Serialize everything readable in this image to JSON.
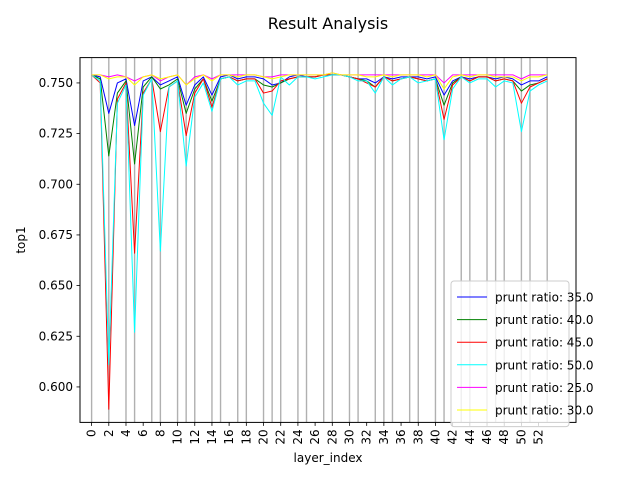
{
  "chart_data": {
    "type": "line",
    "title": "Result Analysis",
    "xlabel": "layer_index",
    "ylabel": "top1",
    "xlim": [
      -1.35,
      56.35
    ],
    "ylim": [
      0.5825,
      0.7625
    ],
    "x_ticks": [
      0,
      2,
      4,
      6,
      8,
      10,
      12,
      14,
      16,
      18,
      20,
      22,
      24,
      26,
      28,
      30,
      32,
      34,
      36,
      38,
      40,
      42,
      44,
      46,
      48,
      50,
      52
    ],
    "y_ticks": [
      0.6,
      0.625,
      0.65,
      0.675,
      0.7,
      0.725,
      0.75
    ],
    "y_tick_labels": [
      "0.600",
      "0.625",
      "0.650",
      "0.675",
      "0.700",
      "0.725",
      "0.750"
    ],
    "vertical_grid_x": [
      0,
      2,
      4,
      5,
      7,
      8,
      10,
      11,
      12,
      14,
      15,
      17,
      18,
      20,
      21,
      22,
      24,
      25,
      27,
      28,
      30,
      31,
      33,
      34,
      35,
      37,
      38,
      40,
      41,
      43,
      44,
      46,
      47,
      48,
      50,
      51,
      53
    ],
    "legend_position": "lower right",
    "series": [
      {
        "name": "prunt ratio: 35.0",
        "color": "#0000ff",
        "values": [
          0.754,
          0.753,
          0.735,
          0.75,
          0.752,
          0.729,
          0.751,
          0.753,
          0.749,
          0.751,
          0.753,
          0.739,
          0.749,
          0.753,
          0.744,
          0.753,
          0.754,
          0.752,
          0.753,
          0.753,
          0.752,
          0.749,
          0.75,
          0.753,
          0.754,
          0.753,
          0.753,
          0.754,
          0.754,
          0.754,
          0.753,
          0.752,
          0.752,
          0.75,
          0.753,
          0.752,
          0.753,
          0.753,
          0.753,
          0.752,
          0.753,
          0.744,
          0.751,
          0.753,
          0.752,
          0.753,
          0.753,
          0.752,
          0.753,
          0.752,
          0.749,
          0.751,
          0.751,
          0.753
        ]
      },
      {
        "name": "prunt ratio: 40.0",
        "color": "#008000",
        "values": [
          0.754,
          0.752,
          0.714,
          0.745,
          0.751,
          0.71,
          0.748,
          0.753,
          0.747,
          0.749,
          0.752,
          0.735,
          0.747,
          0.752,
          0.741,
          0.752,
          0.753,
          0.751,
          0.752,
          0.752,
          0.749,
          0.748,
          0.75,
          0.752,
          0.753,
          0.753,
          0.753,
          0.754,
          0.754,
          0.754,
          0.753,
          0.752,
          0.751,
          0.748,
          0.753,
          0.751,
          0.752,
          0.753,
          0.752,
          0.751,
          0.752,
          0.739,
          0.75,
          0.753,
          0.751,
          0.753,
          0.753,
          0.751,
          0.752,
          0.751,
          0.746,
          0.749,
          0.75,
          0.752
        ]
      },
      {
        "name": "prunt ratio: 45.0",
        "color": "#ff0000",
        "values": [
          0.754,
          0.75,
          0.589,
          0.742,
          0.75,
          0.666,
          0.745,
          0.752,
          0.726,
          0.748,
          0.751,
          0.724,
          0.745,
          0.752,
          0.738,
          0.752,
          0.753,
          0.751,
          0.752,
          0.752,
          0.745,
          0.746,
          0.751,
          0.752,
          0.753,
          0.753,
          0.753,
          0.754,
          0.754,
          0.754,
          0.753,
          0.752,
          0.75,
          0.748,
          0.753,
          0.751,
          0.752,
          0.753,
          0.752,
          0.751,
          0.752,
          0.732,
          0.749,
          0.753,
          0.751,
          0.753,
          0.753,
          0.751,
          0.752,
          0.751,
          0.74,
          0.748,
          0.75,
          0.752
        ]
      },
      {
        "name": "prunt ratio: 50.0",
        "color": "#00ffff",
        "values": [
          0.754,
          0.751,
          0.611,
          0.74,
          0.749,
          0.627,
          0.744,
          0.752,
          0.667,
          0.748,
          0.751,
          0.709,
          0.743,
          0.75,
          0.736,
          0.752,
          0.753,
          0.749,
          0.751,
          0.751,
          0.74,
          0.734,
          0.753,
          0.749,
          0.753,
          0.753,
          0.752,
          0.753,
          0.754,
          0.754,
          0.753,
          0.751,
          0.751,
          0.745,
          0.753,
          0.749,
          0.752,
          0.753,
          0.75,
          0.751,
          0.752,
          0.722,
          0.747,
          0.753,
          0.75,
          0.752,
          0.752,
          0.748,
          0.751,
          0.75,
          0.726,
          0.746,
          0.749,
          0.751
        ]
      },
      {
        "name": "prunt ratio: 25.0",
        "color": "#ff00ff",
        "values": [
          0.754,
          0.754,
          0.753,
          0.754,
          0.753,
          0.751,
          0.753,
          0.754,
          0.751,
          0.753,
          0.754,
          0.749,
          0.753,
          0.754,
          0.752,
          0.754,
          0.754,
          0.754,
          0.754,
          0.754,
          0.753,
          0.753,
          0.754,
          0.754,
          0.754,
          0.754,
          0.754,
          0.754,
          0.755,
          0.754,
          0.754,
          0.754,
          0.754,
          0.754,
          0.754,
          0.754,
          0.754,
          0.754,
          0.754,
          0.754,
          0.754,
          0.75,
          0.754,
          0.754,
          0.754,
          0.754,
          0.754,
          0.754,
          0.754,
          0.754,
          0.752,
          0.754,
          0.754,
          0.754
        ]
      },
      {
        "name": "prunt ratio: 30.0",
        "color": "#ffff00",
        "values": [
          0.754,
          0.754,
          0.752,
          0.753,
          0.753,
          0.749,
          0.753,
          0.754,
          0.752,
          0.753,
          0.754,
          0.749,
          0.752,
          0.754,
          0.751,
          0.754,
          0.754,
          0.753,
          0.754,
          0.754,
          0.753,
          0.752,
          0.753,
          0.754,
          0.754,
          0.754,
          0.754,
          0.754,
          0.755,
          0.754,
          0.754,
          0.754,
          0.753,
          0.753,
          0.754,
          0.753,
          0.754,
          0.754,
          0.754,
          0.753,
          0.754,
          0.747,
          0.753,
          0.754,
          0.753,
          0.754,
          0.754,
          0.753,
          0.753,
          0.753,
          0.751,
          0.753,
          0.753,
          0.754
        ]
      }
    ]
  }
}
